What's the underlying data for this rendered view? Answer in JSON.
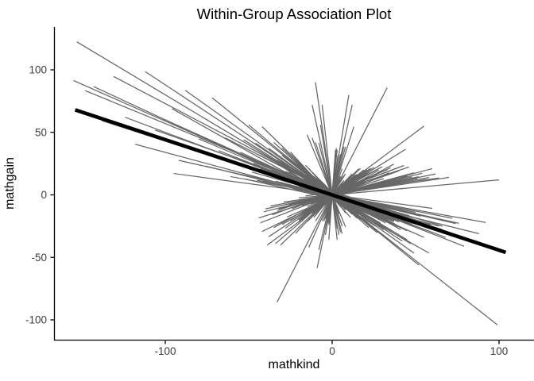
{
  "chart_data": {
    "type": "line",
    "title": "Within-Group Association Plot",
    "xlabel": "mathkind",
    "ylabel": "mathgain",
    "x_ticks": [
      -100,
      0,
      100
    ],
    "y_ticks": [
      -100,
      -50,
      0,
      50,
      100
    ],
    "xlim": [
      -166,
      121
    ],
    "ylim": [
      -116,
      134
    ],
    "grid": false,
    "legend": "none",
    "styles": {
      "background": "#ffffff",
      "axis_color": "#000000",
      "tick_label_color": "#3c3c3c",
      "group_line_color": "#666666",
      "summary_line_color": "#000000"
    },
    "summary_line": {
      "x1": -154,
      "y1": 68,
      "x2": 104,
      "y2": -46
    },
    "group_lines": [
      [
        -153,
        45,
        -0.8,
        0
      ],
      [
        -148,
        30,
        -0.55,
        2
      ],
      [
        -155,
        20,
        -0.59,
        0
      ],
      [
        -143,
        22,
        -0.62,
        -2
      ],
      [
        -138,
        55,
        -0.43,
        0
      ],
      [
        -131,
        38,
        -0.7,
        3
      ],
      [
        -124,
        28,
        -0.5,
        0
      ],
      [
        -118,
        64,
        -0.36,
        -2
      ],
      [
        -112,
        42,
        -0.88,
        0
      ],
      [
        -106,
        70,
        -0.47,
        2
      ],
      [
        -101,
        33,
        -0.6,
        0
      ],
      [
        -96,
        58,
        -0.75,
        -3
      ],
      [
        -92,
        76,
        -0.3,
        0
      ],
      [
        -88,
        49,
        -0.95,
        0
      ],
      [
        -84,
        66,
        -0.41,
        2
      ],
      [
        -80,
        37,
        -0.56,
        0
      ],
      [
        -76,
        88,
        -0.33,
        -2
      ],
      [
        -72,
        52,
        -1.08,
        0
      ],
      [
        -68,
        79,
        -0.52,
        0
      ],
      [
        -64,
        44,
        -0.68,
        2
      ],
      [
        -61,
        92,
        -0.24,
        0
      ],
      [
        -95,
        60,
        -0.18,
        0
      ],
      [
        -30,
        99,
        -1.05,
        0
      ],
      [
        -20,
        100,
        0.12,
        0
      ],
      [
        -33,
        33,
        2.6,
        0
      ],
      [
        -55,
        34,
        -0.62,
        0
      ],
      [
        -54,
        21,
        -0.45,
        3
      ],
      [
        -53,
        47,
        -0.83,
        0
      ],
      [
        -52,
        15,
        -0.3,
        -3
      ],
      [
        -51,
        61,
        -0.5,
        0
      ],
      [
        -50,
        27,
        -1.12,
        0
      ],
      [
        -49,
        39,
        -0.72,
        2
      ],
      [
        -48,
        18,
        -0.38,
        0
      ],
      [
        -47,
        55,
        -0.58,
        -2
      ],
      [
        -46,
        31,
        -0.9,
        0
      ],
      [
        -45,
        72,
        -0.26,
        0
      ],
      [
        -44,
        24,
        -0.66,
        3
      ],
      [
        -43,
        43,
        -0.48,
        0
      ],
      [
        -42,
        12,
        -1.3,
        0
      ],
      [
        -41,
        58,
        -0.35,
        -3
      ],
      [
        -40,
        29,
        -0.78,
        0
      ],
      [
        -39,
        49,
        -0.55,
        2
      ],
      [
        -38,
        16,
        -0.98,
        0
      ],
      [
        -37,
        66,
        -0.42,
        0
      ],
      [
        -36,
        35,
        -0.6,
        -2
      ],
      [
        -35,
        22,
        -1.2,
        0
      ],
      [
        -34,
        53,
        -0.32,
        0
      ],
      [
        -33,
        41,
        -0.75,
        3
      ],
      [
        -32,
        13,
        -0.52,
        0
      ],
      [
        -31,
        63,
        -0.46,
        0
      ],
      [
        -30,
        26,
        -0.85,
        -3
      ],
      [
        -29,
        45,
        -0.64,
        0
      ],
      [
        -28,
        19,
        -1.05,
        2
      ],
      [
        -27,
        57,
        -0.4,
        0
      ],
      [
        -26,
        32,
        -0.7,
        0
      ],
      [
        -25,
        11,
        -1.45,
        -2
      ],
      [
        -24,
        50,
        -0.28,
        0
      ],
      [
        -23,
        37,
        -0.58,
        0
      ],
      [
        -22,
        14,
        -0.92,
        3
      ],
      [
        -21,
        68,
        -0.5,
        0
      ],
      [
        -20,
        28,
        -0.74,
        -2
      ],
      [
        -20,
        46,
        -0.36,
        0
      ],
      [
        -21,
        17,
        -1.15,
        0
      ],
      [
        -22,
        59,
        -0.44,
        2
      ],
      [
        -23,
        25,
        -0.68,
        0
      ],
      [
        -24,
        40,
        -0.54,
        0
      ],
      [
        -25,
        12,
        -1.0,
        -3
      ],
      [
        -26,
        74,
        -0.31,
        0
      ],
      [
        -27,
        36,
        -0.8,
        0
      ],
      [
        -28,
        20,
        -0.6,
        2
      ],
      [
        -29,
        48,
        -0.49,
        0
      ],
      [
        -30,
        15,
        -1.25,
        0
      ],
      [
        -31,
        54,
        -0.39,
        -2
      ],
      [
        -19,
        9,
        -0.55,
        0
      ],
      [
        -18,
        14,
        -0.85,
        2
      ],
      [
        -17,
        6,
        -1.1,
        0
      ],
      [
        -16,
        20,
        -0.4,
        -2
      ],
      [
        -15,
        11,
        -0.7,
        0
      ],
      [
        -14,
        8,
        -1.5,
        0
      ],
      [
        -13,
        17,
        -0.6,
        2
      ],
      [
        -12,
        5,
        -0.95,
        0
      ],
      [
        -11,
        22,
        -0.35,
        0
      ],
      [
        -10,
        13,
        -0.75,
        -2
      ],
      [
        -9,
        7,
        -1.3,
        0
      ],
      [
        -8,
        16,
        -0.5,
        0
      ],
      [
        -7,
        10,
        -0.9,
        2
      ],
      [
        -6,
        19,
        -0.65,
        0
      ],
      [
        -5,
        8,
        -1.8,
        0
      ],
      [
        -18,
        6,
        -0.45,
        -2
      ],
      [
        -16,
        12,
        -1.0,
        0
      ],
      [
        -14,
        24,
        -0.3,
        0
      ],
      [
        -12,
        9,
        -0.8,
        2
      ],
      [
        -10,
        18,
        -0.58,
        0
      ],
      [
        -8,
        5,
        -1.6,
        0
      ],
      [
        -6,
        14,
        -0.42,
        -2
      ],
      [
        -15,
        7,
        -0.68,
        0
      ],
      [
        -13,
        21,
        -0.52,
        0
      ],
      [
        -11,
        10,
        -1.15,
        2
      ],
      [
        -9,
        15,
        -0.62,
        0
      ],
      [
        -7,
        23,
        -0.38,
        0
      ],
      [
        -5,
        11,
        -0.88,
        -2
      ],
      [
        -17,
        8,
        -0.73,
        0
      ],
      [
        -19,
        13,
        -0.47,
        0
      ],
      [
        -16,
        5,
        -1.35,
        2
      ],
      [
        -12,
        16,
        -0.57,
        0
      ],
      [
        -44,
        31,
        0.42,
        0
      ],
      [
        -42,
        18,
        0.65,
        -2
      ],
      [
        -40,
        52,
        0.28,
        0
      ],
      [
        -38,
        25,
        0.88,
        0
      ],
      [
        -36,
        43,
        0.5,
        2
      ],
      [
        -34,
        14,
        1.15,
        0
      ],
      [
        -32,
        60,
        0.35,
        0
      ],
      [
        -30,
        37,
        0.72,
        -2
      ],
      [
        -28,
        21,
        0.95,
        0
      ],
      [
        -26,
        48,
        0.3,
        0
      ],
      [
        -24,
        33,
        0.55,
        2
      ],
      [
        -22,
        12,
        1.4,
        0
      ],
      [
        -20,
        56,
        0.22,
        0
      ],
      [
        -19,
        28,
        0.78,
        -2
      ],
      [
        -18,
        40,
        0.48,
        0
      ],
      [
        -17,
        15,
        1.1,
        0
      ],
      [
        -16,
        64,
        0.18,
        2
      ],
      [
        -15,
        35,
        0.62,
        0
      ],
      [
        -14,
        23,
        0.92,
        0
      ],
      [
        -13,
        45,
        0.38,
        -2
      ],
      [
        -12,
        17,
        1.25,
        0
      ],
      [
        -11,
        51,
        0.26,
        0
      ],
      [
        -10,
        30,
        0.68,
        2
      ],
      [
        -43,
        20,
        0.52,
        0
      ],
      [
        -41,
        38,
        0.33,
        0
      ],
      [
        -39,
        13,
        0.98,
        -2
      ],
      [
        -37,
        58,
        0.24,
        0
      ],
      [
        -35,
        27,
        0.75,
        0
      ],
      [
        -33,
        46,
        0.44,
        2
      ],
      [
        -31,
        16,
        1.3,
        0
      ],
      [
        -29,
        70,
        0.2,
        0
      ],
      [
        -27,
        34,
        0.58,
        -2
      ],
      [
        -25,
        22,
        0.82,
        0
      ],
      [
        -23,
        54,
        0.32,
        0
      ],
      [
        -21,
        41,
        0.5,
        2
      ],
      [
        -20,
        19,
        1.05,
        0
      ],
      [
        -18,
        62,
        0.27,
        0
      ],
      [
        -16,
        29,
        0.7,
        -2
      ],
      [
        -14,
        49,
        0.36,
        0
      ],
      [
        -12,
        24,
        0.6,
        0
      ],
      [
        -20,
        55,
        1.0,
        0
      ],
      [
        -15,
        44,
        0.83,
        0
      ],
      [
        -13,
        8,
        0.9,
        0
      ],
      [
        -11,
        15,
        0.55,
        2
      ],
      [
        -9,
        6,
        1.45,
        0
      ],
      [
        -8,
        12,
        0.75,
        0
      ],
      [
        -7,
        18,
        0.45,
        -2
      ],
      [
        -6,
        9,
        1.2,
        0
      ],
      [
        -5,
        14,
        0.65,
        0
      ],
      [
        -4,
        7,
        1.9,
        2
      ],
      [
        -12,
        5,
        1.0,
        0
      ],
      [
        -10,
        16,
        0.5,
        0
      ],
      [
        -9,
        11,
        0.85,
        -2
      ],
      [
        -8,
        6,
        1.55,
        0
      ],
      [
        -7,
        13,
        0.6,
        0
      ],
      [
        -6,
        20,
        0.4,
        2
      ],
      [
        -5,
        9,
        1.1,
        0
      ],
      [
        -14,
        10,
        0.72,
        0
      ],
      [
        -15,
        6,
        1.3,
        -2
      ],
      [
        -10,
        8,
        2.1,
        0
      ],
      [
        -6,
        16,
        0.52,
        0
      ],
      [
        -4,
        12,
        0.8,
        2
      ],
      [
        -11,
        7,
        1.65,
        0
      ],
      [
        -8,
        19,
        0.48,
        0
      ],
      [
        -6,
        6,
        3.5,
        0
      ],
      [
        -4,
        8,
        4.8,
        0
      ],
      [
        -9,
        5,
        6.5,
        0
      ],
      [
        -2,
        3,
        12,
        0
      ],
      [
        -12,
        4,
        -3.8,
        0
      ],
      [
        -8,
        6,
        -5.2,
        0
      ],
      [
        -7,
        4,
        -8,
        0
      ],
      [
        -1.5,
        2.5,
        15,
        0
      ],
      [
        -14,
        5,
        3.0,
        0
      ],
      [
        -10,
        6,
        -4.2,
        0
      ],
      [
        -2.5,
        3.5,
        9,
        0
      ],
      [
        -8,
        7,
        5.5,
        0
      ],
      [
        -12,
        5,
        -6.0,
        0
      ],
      [
        -2,
        2,
        18,
        0
      ],
      [
        -6,
        3,
        -12,
        0
      ],
      [
        -15,
        8,
        -3.2,
        0
      ],
      [
        -4,
        10,
        8,
        0
      ],
      [
        -3,
        12,
        6,
        0
      ],
      [
        -10,
        3,
        -9,
        0
      ],
      [
        -5,
        13,
        4.2,
        0
      ]
    ]
  }
}
